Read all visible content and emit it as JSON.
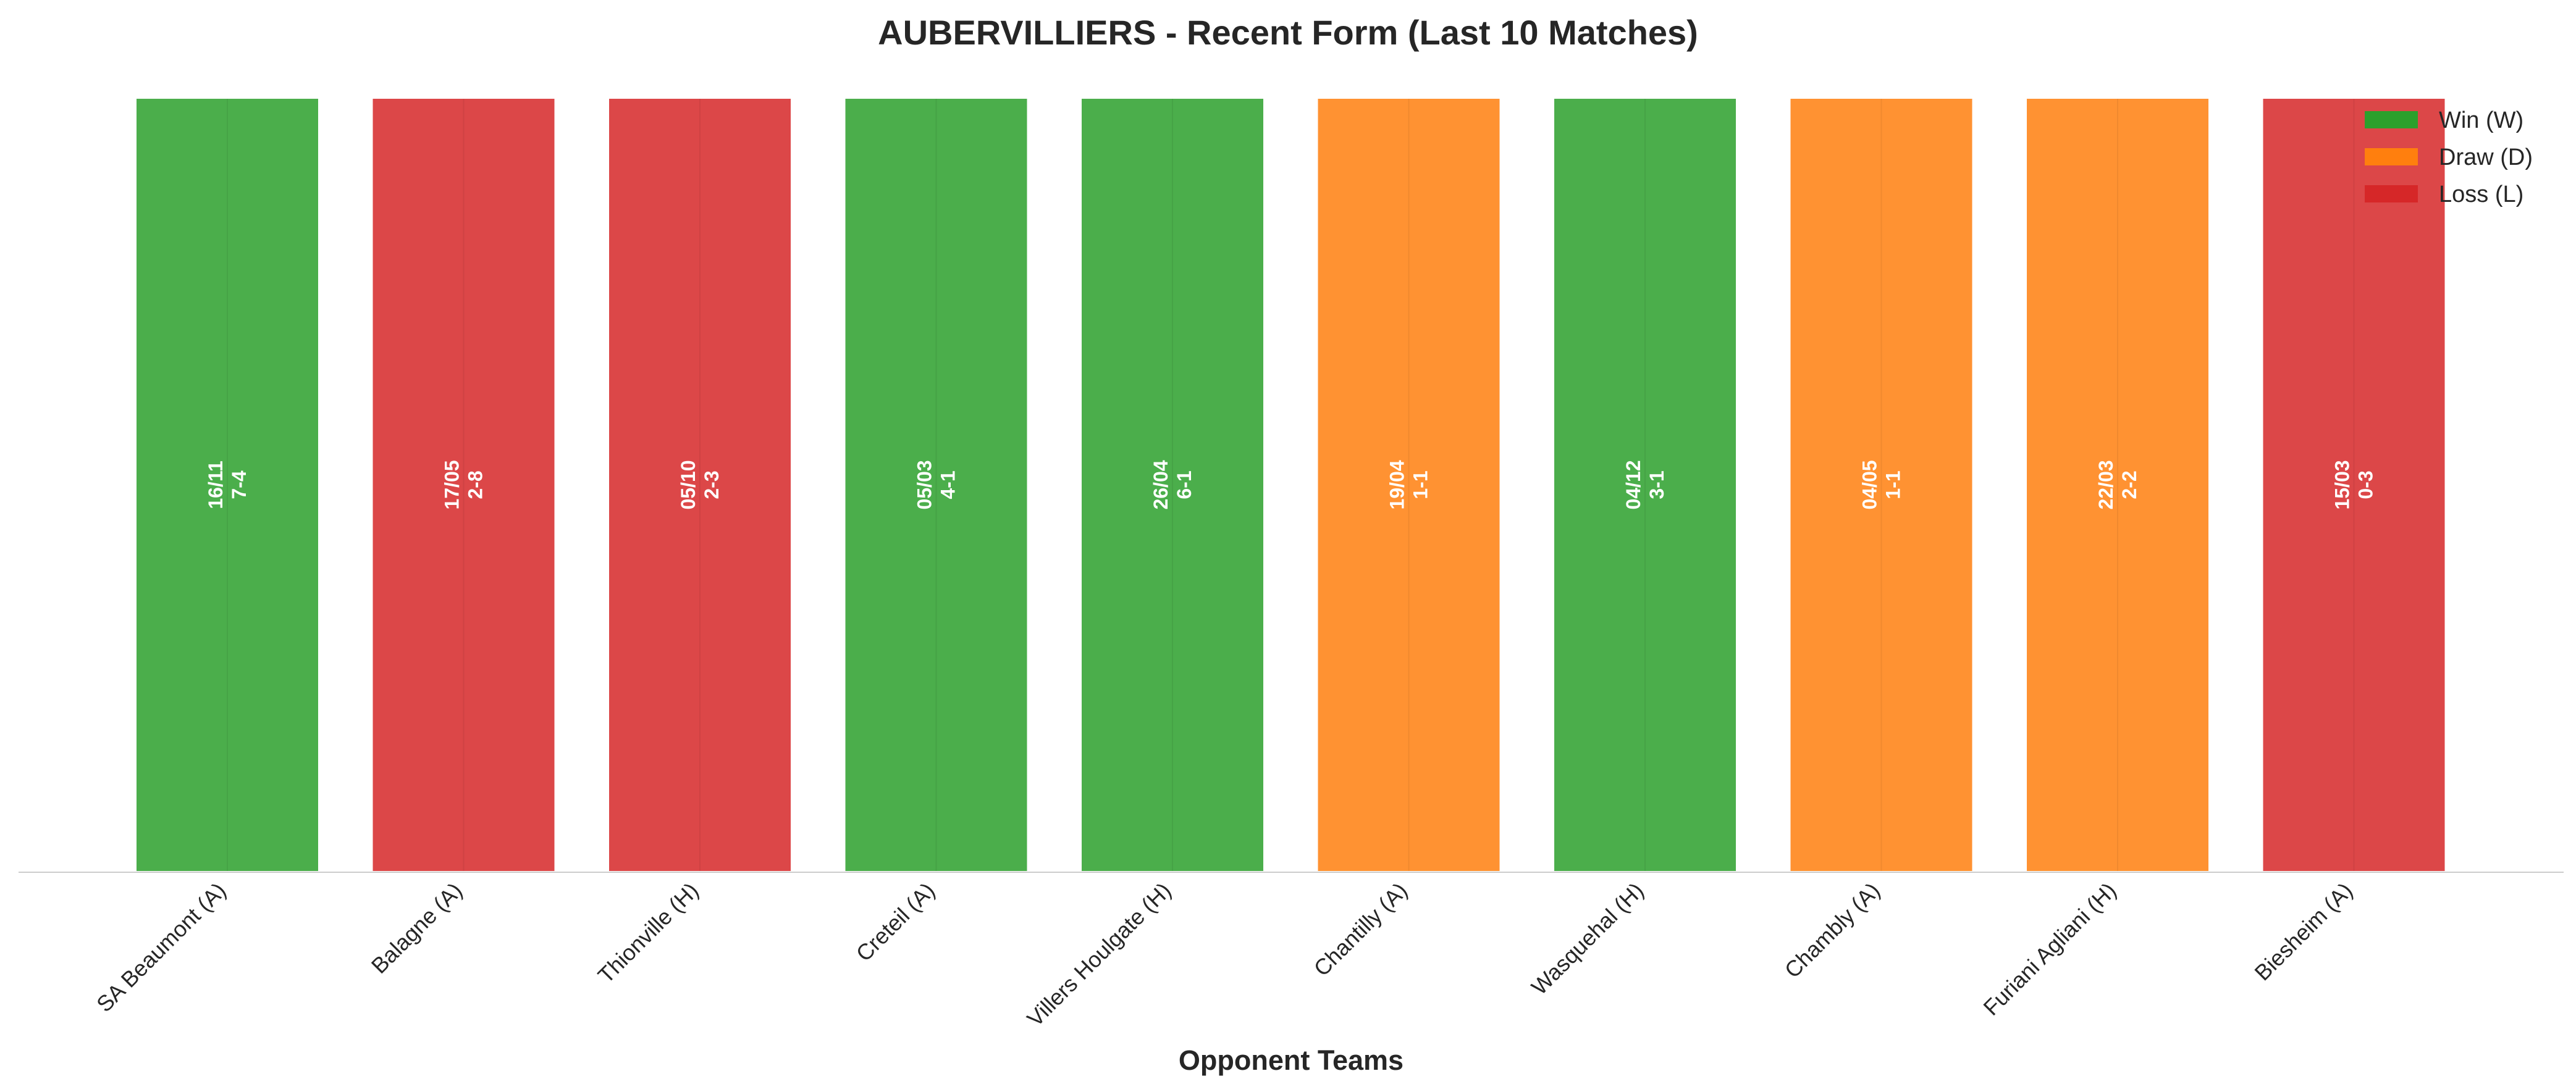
{
  "chart_data": {
    "type": "bar",
    "title": "AUBERVILLIERS - Recent Form (Last 10 Matches)",
    "xlabel": "Opponent Teams",
    "ylabel": "",
    "ylim": [
      0,
      1
    ],
    "grid": false,
    "legend_position": "top-right",
    "colors": {
      "W": "#2ca02c",
      "D": "#ff7f0e",
      "L": "#d62728"
    },
    "legend": [
      {
        "key": "W",
        "label": "Win (W)"
      },
      {
        "key": "D",
        "label": "Draw (D)"
      },
      {
        "key": "L",
        "label": "Loss (L)"
      }
    ],
    "categories": [
      "SA Beaumont (A)",
      "Balagne (A)",
      "Thionville (H)",
      "Creteil (A)",
      "Villers Houlgate (H)",
      "Chantilly (A)",
      "Wasquehal (H)",
      "Chambly (A)",
      "Furiani Agliani (H)",
      "Biesheim (A)"
    ],
    "values": [
      1,
      1,
      1,
      1,
      1,
      1,
      1,
      1,
      1,
      1
    ],
    "results": [
      "W",
      "L",
      "L",
      "W",
      "W",
      "D",
      "W",
      "D",
      "D",
      "L"
    ],
    "dates": [
      "16/11",
      "17/05",
      "05/10",
      "05/03",
      "26/04",
      "19/04",
      "04/12",
      "04/05",
      "22/03",
      "15/03"
    ],
    "scores": [
      "7-4",
      "2-8",
      "2-3",
      "4-1",
      "6-1",
      "1-1",
      "3-1",
      "1-1",
      "2-2",
      "0-3"
    ]
  }
}
